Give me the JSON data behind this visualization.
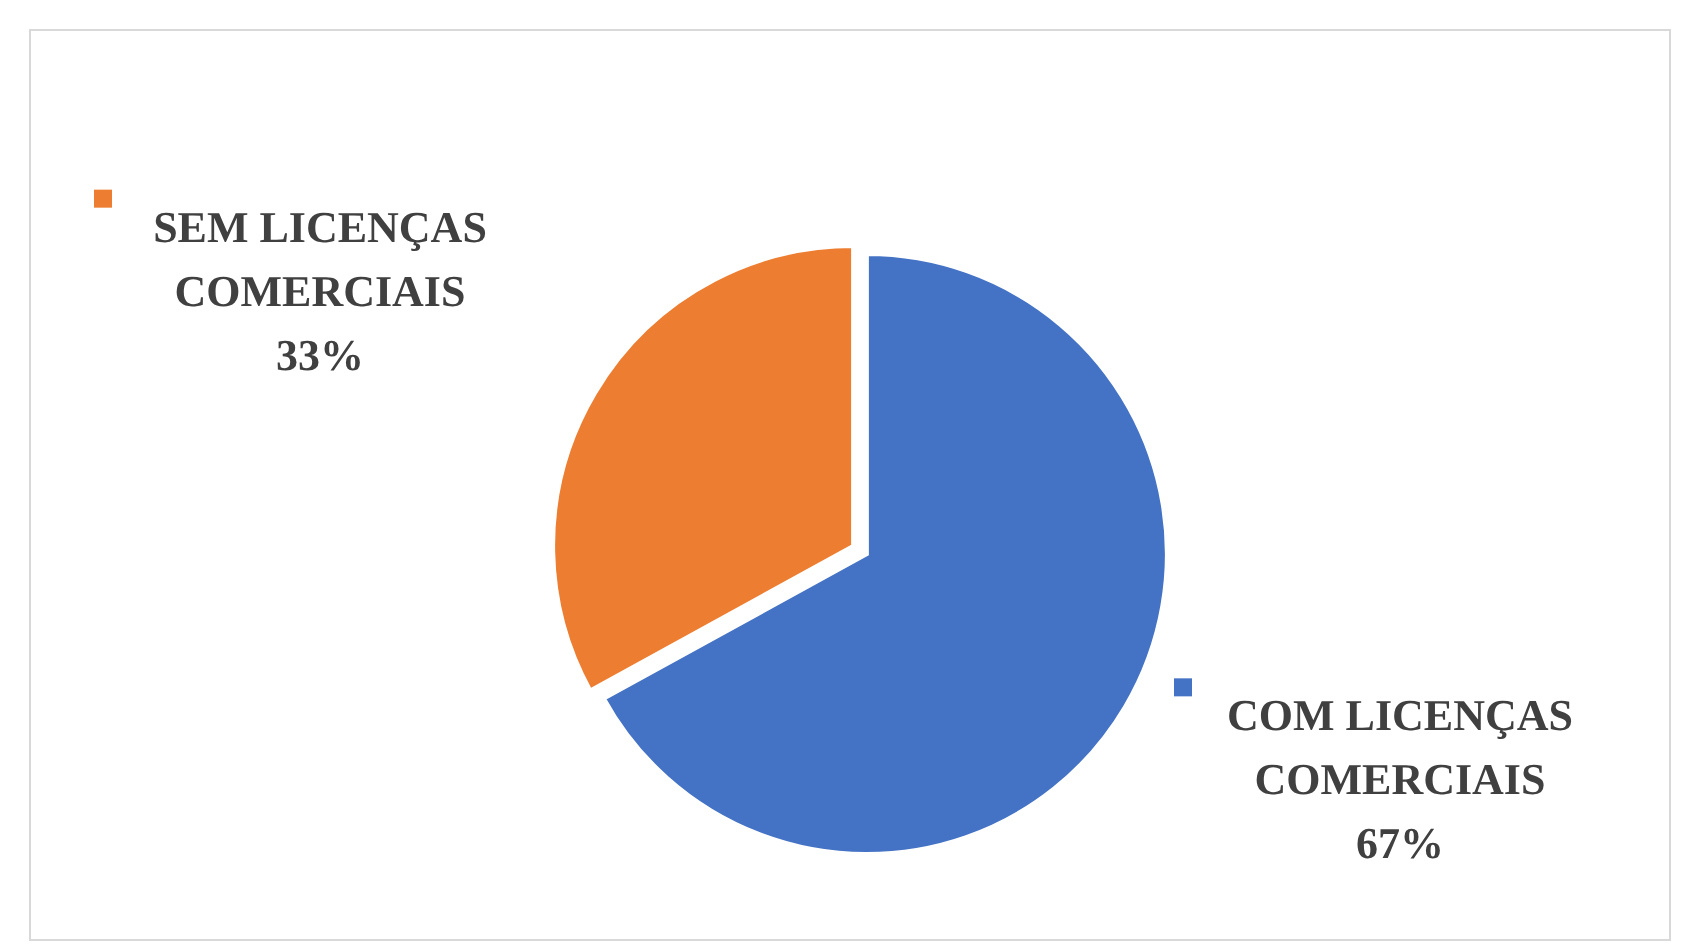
{
  "chart_data": {
    "type": "pie",
    "categories": [
      "COM LICENÇAS COMERCIAIS",
      "SEM LICENÇAS COMERCIAIS"
    ],
    "values": [
      67,
      33
    ],
    "colors": [
      "#4472c4",
      "#ed7d31"
    ],
    "value_labels": [
      "67%",
      "33%"
    ]
  }
}
